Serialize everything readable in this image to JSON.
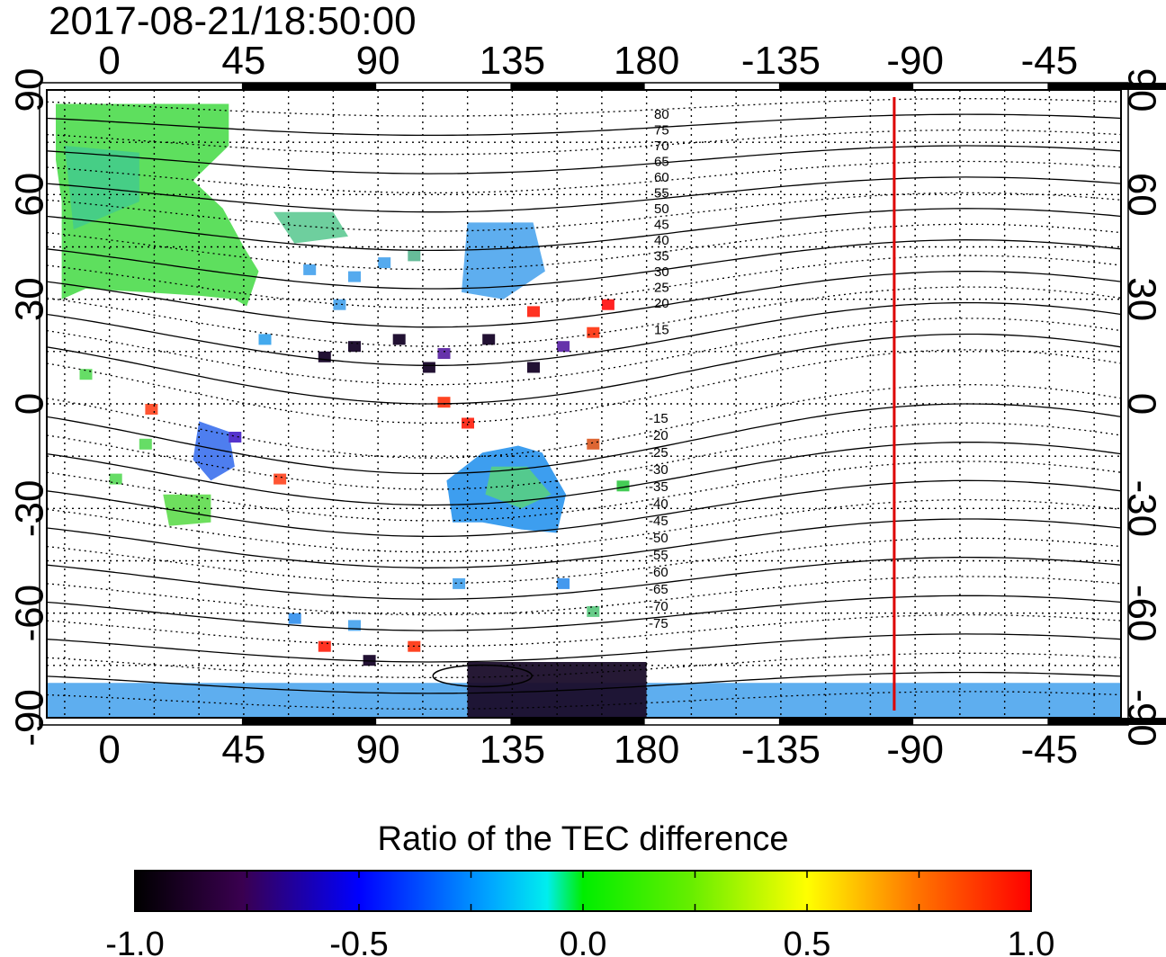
{
  "timestamp": "2017-08-21/18:50:00",
  "map": {
    "lon_ticks_top": [
      "0",
      "45",
      "90",
      "135",
      "180",
      "-135",
      "-90",
      "-45"
    ],
    "lon_ticks_bottom": [
      "0",
      "45",
      "90",
      "135",
      "180",
      "-135",
      "-90",
      "-45"
    ],
    "lon_tick_values": [
      0,
      45,
      90,
      135,
      180,
      225,
      270,
      315
    ],
    "lat_ticks_left": [
      "90",
      "60",
      "30",
      "0",
      "-30",
      "-60",
      "-90"
    ],
    "lat_ticks_right": [
      "90",
      "60",
      "30",
      "0",
      "-30",
      "-60",
      "-90"
    ],
    "lat_tick_values": [
      90,
      60,
      30,
      0,
      -30,
      -60,
      -90
    ],
    "lon_range": [
      -21,
      339
    ],
    "lat_range": [
      -90,
      90
    ],
    "gridlines": "dotted, every 15 degrees",
    "meridian_marker_lon": -97,
    "meridian_marker_color": "#dd0000",
    "maglat_labels_north": [
      "80",
      "75",
      "70",
      "65",
      "60",
      "55",
      "50",
      "45",
      "40",
      "35",
      "30",
      "25",
      "20",
      "15"
    ],
    "maglat_labels_south": [
      "-15",
      "-20",
      "-25",
      "-30",
      "-35",
      "-40",
      "-45",
      "-50",
      "-55",
      "-60",
      "-65",
      "-70",
      "-75"
    ]
  },
  "colorbar": {
    "title": "Ratio of the TEC difference",
    "tick_labels": [
      "-1.0",
      "-0.5",
      "0.0",
      "0.5",
      "1.0"
    ],
    "range": [
      -1.0,
      1.0
    ],
    "colors": [
      "#000000",
      "#4a0070",
      "#0000ff",
      "#00e8ff",
      "#00ee00",
      "#ffff00",
      "#ff8000",
      "#ff0000"
    ]
  }
}
